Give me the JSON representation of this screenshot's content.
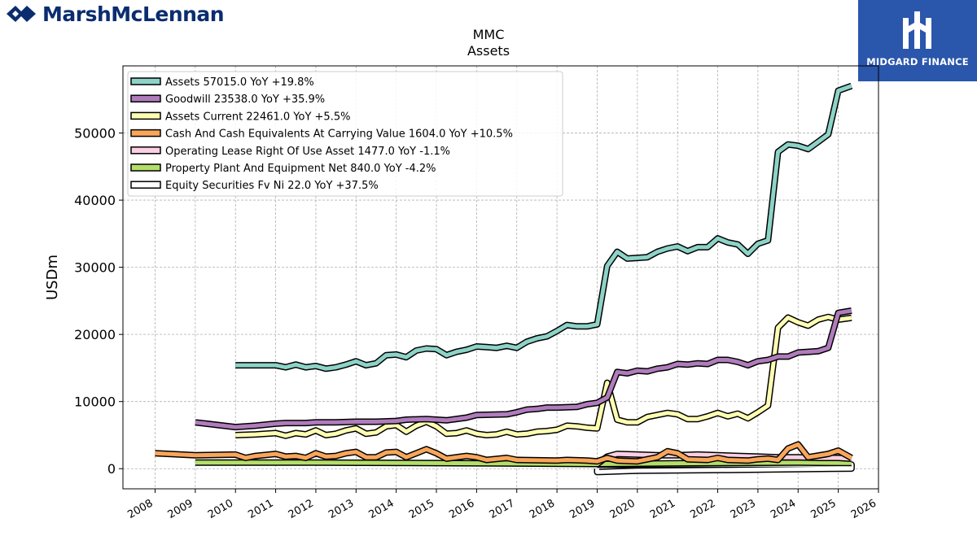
{
  "header": {
    "brand_name": "MarshMcLennan",
    "logo_text": "MIDGARD FINANCE"
  },
  "colors": {
    "assets": "#8dd3c7",
    "goodwill": "#b07cbc",
    "assets_current": "#ffffb3",
    "cash": "#f9a65a",
    "operating_lease": "#fbcfe3",
    "ppe": "#b3de69",
    "equity_securities": "#ffffff",
    "brand_blue": "#0b2d6f",
    "logo_bg": "#2a56ac"
  },
  "chart_data": {
    "type": "line",
    "title": "MMC",
    "subtitle": "Assets",
    "xlabel": "",
    "ylabel": "USDm",
    "xlim": [
      2007.2,
      2026.0
    ],
    "ylim": [
      -3000,
      60000
    ],
    "x_ticks": [
      "2008",
      "2009",
      "2010",
      "2011",
      "2012",
      "2013",
      "2014",
      "2015",
      "2016",
      "2017",
      "2018",
      "2019",
      "2020",
      "2021",
      "2022",
      "2023",
      "2024",
      "2025",
      "2026"
    ],
    "y_ticks": [
      0,
      10000,
      20000,
      30000,
      40000,
      50000
    ],
    "y_tick_labels": [
      "0",
      "10000",
      "20000",
      "30000",
      "40000",
      "50000"
    ],
    "grid": true,
    "legend_position": "top-left",
    "series": [
      {
        "name": "Assets",
        "legend": "Assets  57015.0 YoY +19.8%",
        "color": "#8dd3c7",
        "points": [
          [
            2010.0,
            15400
          ],
          [
            2011.0,
            15400
          ],
          [
            2011.25,
            15100
          ],
          [
            2011.5,
            15500
          ],
          [
            2011.75,
            15100
          ],
          [
            2012.0,
            15300
          ],
          [
            2012.25,
            14900
          ],
          [
            2012.5,
            15100
          ],
          [
            2012.75,
            15500
          ],
          [
            2013.0,
            16000
          ],
          [
            2013.25,
            15400
          ],
          [
            2013.5,
            15700
          ],
          [
            2013.75,
            16900
          ],
          [
            2014.0,
            17000
          ],
          [
            2014.25,
            16600
          ],
          [
            2014.5,
            17600
          ],
          [
            2014.75,
            17900
          ],
          [
            2015.0,
            17800
          ],
          [
            2015.25,
            16900
          ],
          [
            2015.5,
            17400
          ],
          [
            2015.75,
            17700
          ],
          [
            2016.0,
            18200
          ],
          [
            2016.25,
            18100
          ],
          [
            2016.5,
            18000
          ],
          [
            2016.75,
            18300
          ],
          [
            2017.0,
            18000
          ],
          [
            2017.25,
            18900
          ],
          [
            2017.5,
            19400
          ],
          [
            2017.75,
            19700
          ],
          [
            2018.0,
            20500
          ],
          [
            2018.25,
            21400
          ],
          [
            2018.5,
            21200
          ],
          [
            2018.75,
            21200
          ],
          [
            2019.0,
            21500
          ],
          [
            2019.25,
            30200
          ],
          [
            2019.5,
            32300
          ],
          [
            2019.75,
            31300
          ],
          [
            2020.0,
            31400
          ],
          [
            2020.25,
            31500
          ],
          [
            2020.5,
            32300
          ],
          [
            2020.75,
            32800
          ],
          [
            2021.0,
            33100
          ],
          [
            2021.25,
            32400
          ],
          [
            2021.5,
            33000
          ],
          [
            2021.75,
            33000
          ],
          [
            2022.0,
            34300
          ],
          [
            2022.25,
            33700
          ],
          [
            2022.5,
            33400
          ],
          [
            2022.75,
            32000
          ],
          [
            2023.0,
            33500
          ],
          [
            2023.25,
            34000
          ],
          [
            2023.5,
            47200
          ],
          [
            2023.75,
            48300
          ],
          [
            2024.0,
            48100
          ],
          [
            2024.25,
            47600
          ],
          [
            2024.5,
            48700
          ],
          [
            2024.75,
            49800
          ],
          [
            2025.0,
            56300
          ],
          [
            2025.33,
            57015
          ]
        ]
      },
      {
        "name": "Goodwill",
        "legend": "Goodwill  23538.0 YoY +35.9%",
        "color": "#b07cbc",
        "points": [
          [
            2009.0,
            6900
          ],
          [
            2010.0,
            6200
          ],
          [
            2010.5,
            6400
          ],
          [
            2011.0,
            6700
          ],
          [
            2011.25,
            6800
          ],
          [
            2011.75,
            6800
          ],
          [
            2012.0,
            6900
          ],
          [
            2012.5,
            6900
          ],
          [
            2013.0,
            7000
          ],
          [
            2013.5,
            7000
          ],
          [
            2014.0,
            7100
          ],
          [
            2014.25,
            7300
          ],
          [
            2014.75,
            7400
          ],
          [
            2015.0,
            7300
          ],
          [
            2015.25,
            7200
          ],
          [
            2015.75,
            7600
          ],
          [
            2016.0,
            8000
          ],
          [
            2016.75,
            8100
          ],
          [
            2017.0,
            8400
          ],
          [
            2017.25,
            8800
          ],
          [
            2017.5,
            8900
          ],
          [
            2017.75,
            9100
          ],
          [
            2018.0,
            9100
          ],
          [
            2018.5,
            9200
          ],
          [
            2018.75,
            9600
          ],
          [
            2019.0,
            9800
          ],
          [
            2019.25,
            10600
          ],
          [
            2019.5,
            14400
          ],
          [
            2019.75,
            14200
          ],
          [
            2020.0,
            14600
          ],
          [
            2020.25,
            14500
          ],
          [
            2020.5,
            14900
          ],
          [
            2020.75,
            15100
          ],
          [
            2021.0,
            15600
          ],
          [
            2021.25,
            15500
          ],
          [
            2021.5,
            15700
          ],
          [
            2021.75,
            15600
          ],
          [
            2022.0,
            16200
          ],
          [
            2022.25,
            16200
          ],
          [
            2022.5,
            15900
          ],
          [
            2022.75,
            15400
          ],
          [
            2023.0,
            16000
          ],
          [
            2023.25,
            16200
          ],
          [
            2023.5,
            16700
          ],
          [
            2023.75,
            16700
          ],
          [
            2024.0,
            17300
          ],
          [
            2024.25,
            17400
          ],
          [
            2024.5,
            17500
          ],
          [
            2024.75,
            18000
          ],
          [
            2025.0,
            23200
          ],
          [
            2025.33,
            23538
          ]
        ]
      },
      {
        "name": "Assets Current",
        "legend": "Assets Current  22461.0 YoY +5.5%",
        "color": "#ffffb3",
        "points": [
          [
            2010.0,
            5000
          ],
          [
            2010.5,
            5100
          ],
          [
            2011.0,
            5300
          ],
          [
            2011.25,
            4900
          ],
          [
            2011.5,
            5300
          ],
          [
            2011.75,
            5100
          ],
          [
            2012.0,
            5700
          ],
          [
            2012.25,
            5000
          ],
          [
            2012.5,
            5200
          ],
          [
            2012.75,
            5700
          ],
          [
            2013.0,
            6000
          ],
          [
            2013.25,
            5200
          ],
          [
            2013.5,
            5400
          ],
          [
            2013.75,
            6300
          ],
          [
            2014.0,
            6500
          ],
          [
            2014.25,
            5500
          ],
          [
            2014.5,
            6400
          ],
          [
            2014.75,
            7000
          ],
          [
            2015.0,
            6300
          ],
          [
            2015.25,
            5200
          ],
          [
            2015.5,
            5300
          ],
          [
            2015.75,
            5700
          ],
          [
            2016.0,
            5200
          ],
          [
            2016.25,
            5000
          ],
          [
            2016.5,
            5100
          ],
          [
            2016.75,
            5500
          ],
          [
            2017.0,
            5100
          ],
          [
            2017.25,
            5200
          ],
          [
            2017.5,
            5500
          ],
          [
            2017.75,
            5600
          ],
          [
            2018.0,
            5800
          ],
          [
            2018.25,
            6400
          ],
          [
            2018.5,
            6300
          ],
          [
            2018.75,
            6100
          ],
          [
            2019.0,
            6000
          ],
          [
            2019.25,
            12800
          ],
          [
            2019.5,
            7300
          ],
          [
            2019.75,
            6900
          ],
          [
            2020.0,
            6900
          ],
          [
            2020.25,
            7700
          ],
          [
            2020.5,
            8000
          ],
          [
            2020.75,
            8300
          ],
          [
            2021.0,
            8100
          ],
          [
            2021.25,
            7400
          ],
          [
            2021.5,
            7400
          ],
          [
            2021.75,
            7800
          ],
          [
            2022.0,
            8300
          ],
          [
            2022.25,
            7800
          ],
          [
            2022.5,
            8200
          ],
          [
            2022.75,
            7500
          ],
          [
            2023.0,
            8400
          ],
          [
            2023.25,
            9400
          ],
          [
            2023.5,
            21000
          ],
          [
            2023.75,
            22500
          ],
          [
            2024.0,
            21800
          ],
          [
            2024.25,
            21300
          ],
          [
            2024.5,
            22200
          ],
          [
            2024.75,
            22600
          ],
          [
            2025.0,
            22200
          ],
          [
            2025.33,
            22461
          ]
        ]
      },
      {
        "name": "Cash And Cash Equivalents At Carrying Value",
        "legend": "Cash And Cash Equivalents At Carrying Value  1604.0 YoY +10.5%",
        "color": "#f9a65a",
        "points": [
          [
            2008.0,
            2300
          ],
          [
            2009.0,
            2000
          ],
          [
            2010.0,
            2100
          ],
          [
            2010.25,
            1600
          ],
          [
            2010.5,
            1900
          ],
          [
            2011.0,
            2200
          ],
          [
            2011.25,
            1800
          ],
          [
            2011.5,
            1900
          ],
          [
            2011.75,
            1600
          ],
          [
            2012.0,
            2300
          ],
          [
            2012.25,
            1800
          ],
          [
            2012.5,
            1900
          ],
          [
            2012.75,
            2300
          ],
          [
            2013.0,
            2500
          ],
          [
            2013.25,
            1700
          ],
          [
            2013.5,
            1700
          ],
          [
            2013.75,
            2400
          ],
          [
            2014.0,
            2500
          ],
          [
            2014.25,
            1700
          ],
          [
            2014.5,
            2300
          ],
          [
            2014.75,
            2900
          ],
          [
            2015.0,
            2300
          ],
          [
            2015.25,
            1500
          ],
          [
            2015.75,
            1900
          ],
          [
            2016.0,
            1700
          ],
          [
            2016.25,
            1300
          ],
          [
            2016.75,
            1600
          ],
          [
            2017.0,
            1300
          ],
          [
            2018.0,
            1200
          ],
          [
            2018.25,
            1300
          ],
          [
            2018.75,
            1200
          ],
          [
            2019.0,
            1100
          ],
          [
            2019.25,
            1600
          ],
          [
            2019.5,
            1200
          ],
          [
            2020.0,
            1100
          ],
          [
            2020.5,
            1700
          ],
          [
            2020.75,
            2600
          ],
          [
            2021.0,
            2300
          ],
          [
            2021.25,
            1400
          ],
          [
            2021.75,
            1300
          ],
          [
            2022.0,
            1600
          ],
          [
            2022.25,
            1300
          ],
          [
            2022.75,
            1200
          ],
          [
            2023.0,
            1400
          ],
          [
            2023.25,
            1500
          ],
          [
            2023.5,
            1300
          ],
          [
            2023.75,
            3000
          ],
          [
            2024.0,
            3600
          ],
          [
            2024.25,
            1700
          ],
          [
            2024.75,
            2200
          ],
          [
            2025.0,
            2700
          ],
          [
            2025.33,
            1604
          ]
        ]
      },
      {
        "name": "Operating Lease Right Of Use Asset",
        "legend": "Operating Lease Right Of Use Asset  1477.0 YoY -1.1%",
        "color": "#fbcfe3",
        "points": [
          [
            2019.0,
            700
          ],
          [
            2019.25,
            1800
          ],
          [
            2019.5,
            2200
          ],
          [
            2020.0,
            2100
          ],
          [
            2020.5,
            2000
          ],
          [
            2021.0,
            2000
          ],
          [
            2021.5,
            2100
          ],
          [
            2022.0,
            2000
          ],
          [
            2022.5,
            1900
          ],
          [
            2023.0,
            1800
          ],
          [
            2023.5,
            1700
          ],
          [
            2024.0,
            1700
          ],
          [
            2024.5,
            1600
          ],
          [
            2025.0,
            1600
          ],
          [
            2025.33,
            1477
          ]
        ]
      },
      {
        "name": "Property Plant And Equipment Net",
        "legend": "Property Plant And Equipment Net  840.0 YoY -4.2%",
        "color": "#b3de69",
        "points": [
          [
            2009.0,
            900
          ],
          [
            2012.0,
            900
          ],
          [
            2016.0,
            800
          ],
          [
            2019.0,
            700
          ],
          [
            2021.0,
            800
          ],
          [
            2024.0,
            900
          ],
          [
            2025.33,
            840
          ]
        ]
      },
      {
        "name": "Equity Securities Fv Ni",
        "legend": "Equity Securities Fv Ni  22.0 YoY +37.5%",
        "color": "#ffffff",
        "points": [
          [
            2019.0,
            0
          ],
          [
            2019.0,
            -500
          ],
          [
            2020.0,
            -300
          ],
          [
            2022.0,
            -200
          ],
          [
            2025.33,
            22
          ],
          [
            2025.33,
            600
          ],
          [
            2019.0,
            600
          ]
        ]
      }
    ]
  }
}
